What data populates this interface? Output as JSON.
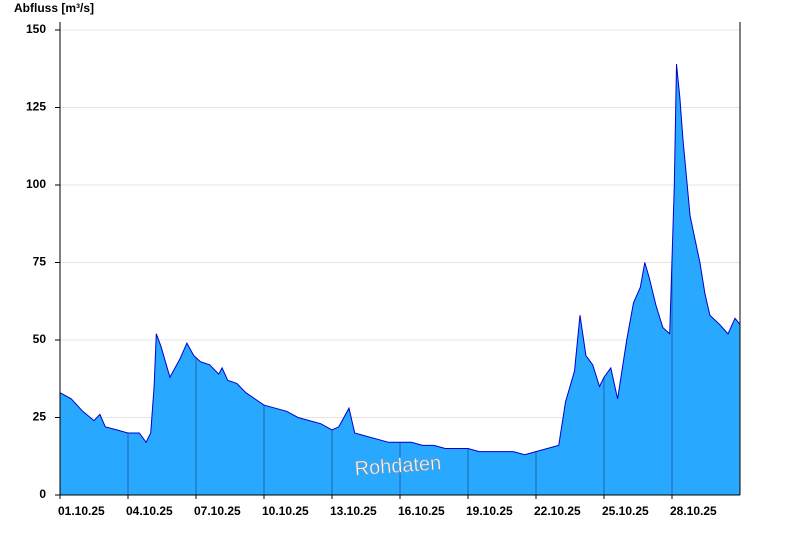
{
  "chart_data": {
    "type": "area",
    "y_label": "Abfluss [m³/s]",
    "annotation": "Rohdaten",
    "color": "#29a8ff",
    "line_color": "#0000cc",
    "grid": true,
    "xlim": [
      0,
      30
    ],
    "xticks": [
      {
        "value": 0,
        "label": "01.10.25"
      },
      {
        "value": 3,
        "label": "04.10.25"
      },
      {
        "value": 6,
        "label": "07.10.25"
      },
      {
        "value": 9,
        "label": "10.10.25"
      },
      {
        "value": 12,
        "label": "13.10.25"
      },
      {
        "value": 15,
        "label": "16.10.25"
      },
      {
        "value": 18,
        "label": "19.10.25"
      },
      {
        "value": 21,
        "label": "22.10.25"
      },
      {
        "value": 24,
        "label": "25.10.25"
      },
      {
        "value": 27,
        "label": "28.10.25"
      }
    ],
    "ylim": [
      0,
      150
    ],
    "yticks": [
      0,
      25,
      50,
      75,
      100,
      125,
      150
    ],
    "x": [
      0,
      0.5,
      1,
      1.5,
      1.76,
      2,
      2.5,
      3,
      3.5,
      3.8,
      4,
      4.15,
      4.25,
      4.45,
      4.85,
      5,
      5.3,
      5.6,
      5.9,
      6.2,
      6.6,
      7,
      7.15,
      7.4,
      7.8,
      8.2,
      8.6,
      9,
      9.5,
      10,
      10.5,
      11,
      11.5,
      12,
      12.3,
      12.75,
      13,
      13.5,
      14,
      14.5,
      15,
      15.5,
      16,
      16.5,
      17,
      17.5,
      18,
      18.5,
      19,
      19.5,
      20,
      20.5,
      21,
      21.5,
      22,
      22.3,
      22.7,
      22.94,
      23.2,
      23.5,
      23.8,
      24,
      24.3,
      24.6,
      25,
      25.3,
      25.6,
      25.8,
      26,
      26.3,
      26.6,
      26.9,
      27.1,
      27.2,
      27.35,
      27.48,
      27.8,
      28.23,
      28.45,
      28.67,
      29.1,
      29.47,
      29.78,
      30
    ],
    "values": [
      33,
      31,
      27,
      24,
      26,
      22,
      21,
      20,
      20,
      17,
      20,
      35,
      52,
      48,
      38,
      40,
      44,
      49,
      45,
      43,
      42,
      39,
      41,
      37,
      36,
      33,
      31,
      29,
      28,
      27,
      25,
      24,
      23,
      21,
      22,
      28,
      20,
      19,
      18,
      17,
      17,
      17,
      16,
      16,
      15,
      15,
      15,
      14,
      14,
      14,
      14,
      13,
      14,
      15,
      16,
      30,
      40,
      58,
      45,
      42,
      35,
      38,
      41,
      31,
      50,
      62,
      67,
      75,
      70,
      61,
      54,
      52,
      100,
      139,
      128,
      115,
      90,
      75,
      65,
      58,
      55,
      52,
      57,
      55
    ]
  }
}
